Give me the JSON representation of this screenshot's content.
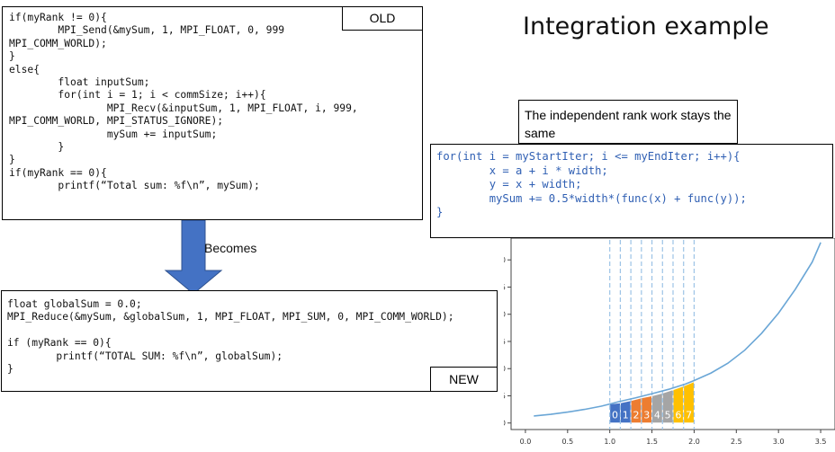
{
  "old_box": {
    "tag": "OLD",
    "lines": [
      "if(myRank != 0){",
      "        MPI_Send(&mySum, 1, MPI_FLOAT, 0, 999",
      "MPI_COMM_WORLD);",
      "}",
      "else{",
      "        float inputSum;",
      "        for(int i = 1; i < commSize; i++){",
      "                MPI_Recv(&inputSum, 1, MPI_FLOAT, i, 999,",
      "MPI_COMM_WORLD, MPI_STATUS_IGNORE);",
      "                mySum += inputSum;",
      "        }",
      "}",
      "if(myRank == 0){",
      "        printf(“Total sum: %f\\n”, mySum);"
    ]
  },
  "arrow_label": "Becomes",
  "new_box": {
    "tag": "NEW",
    "lines": [
      "float globalSum = 0.0;",
      "MPI_Reduce(&mySum, &globalSum, 1, MPI_FLOAT, MPI_SUM, 0, MPI_COMM_WORLD);",
      "",
      "if (myRank == 0){",
      "        printf(“TOTAL SUM: %f\\n”, globalSum);",
      "}"
    ]
  },
  "title": "Integration example",
  "note": "The independent rank work stays the same",
  "loop_box": {
    "lines": [
      "for(int i = myStartIter; i <= myEndIter; i++){",
      "        x = a + i * width;",
      "        y = x + width;",
      "        mySum += 0.5*width*(func(x) + func(y));",
      "}"
    ]
  },
  "colors": {
    "arrow": "#4472c4",
    "code_blue": "#2f5fb3",
    "curve": "#6aa6d6",
    "bars": [
      "#4472c4",
      "#4472c4",
      "#ed7d31",
      "#ed7d31",
      "#a5a5a5",
      "#a5a5a5",
      "#ffc000",
      "#ffc000"
    ]
  },
  "chart_data": {
    "type": "area",
    "x_ticks": [
      0.0,
      0.5,
      1.0,
      1.5,
      2.0,
      2.5,
      3.0,
      3.5
    ],
    "y_ticks": [
      0,
      5,
      10,
      15,
      20,
      25,
      30
    ],
    "xlim": [
      -0.17,
      3.67
    ],
    "ylim": [
      -1.2,
      34
    ],
    "curve_x": [
      0.1,
      0.3,
      0.5,
      0.7,
      0.9,
      1.0,
      1.1,
      1.3,
      1.5,
      1.7,
      1.9,
      2.0,
      2.2,
      2.4,
      2.6,
      2.8,
      3.0,
      3.2,
      3.4,
      3.5
    ],
    "curve_y": [
      1.3,
      1.6,
      2.0,
      2.5,
      3.1,
      3.5,
      3.9,
      4.6,
      5.4,
      6.2,
      7.2,
      7.8,
      9.2,
      11.0,
      13.4,
      16.5,
      20.2,
      24.6,
      29.6,
      33.2
    ],
    "slices": [
      {
        "label": "0",
        "x0": 1.0,
        "x1": 1.125,
        "y0": 3.5,
        "y1": 3.7
      },
      {
        "label": "1",
        "x0": 1.125,
        "x1": 1.25,
        "y0": 3.7,
        "y1": 4.1
      },
      {
        "label": "2",
        "x0": 1.25,
        "x1": 1.375,
        "y0": 4.1,
        "y1": 4.6
      },
      {
        "label": "3",
        "x0": 1.375,
        "x1": 1.5,
        "y0": 4.6,
        "y1": 5.0
      },
      {
        "label": "4",
        "x0": 1.5,
        "x1": 1.625,
        "y0": 5.0,
        "y1": 5.5
      },
      {
        "label": "5",
        "x0": 1.625,
        "x1": 1.75,
        "y0": 5.5,
        "y1": 6.1
      },
      {
        "label": "6",
        "x0": 1.75,
        "x1": 1.875,
        "y0": 6.1,
        "y1": 6.8
      },
      {
        "label": "7",
        "x0": 1.875,
        "x1": 2.0,
        "y0": 6.8,
        "y1": 7.6
      }
    ]
  }
}
